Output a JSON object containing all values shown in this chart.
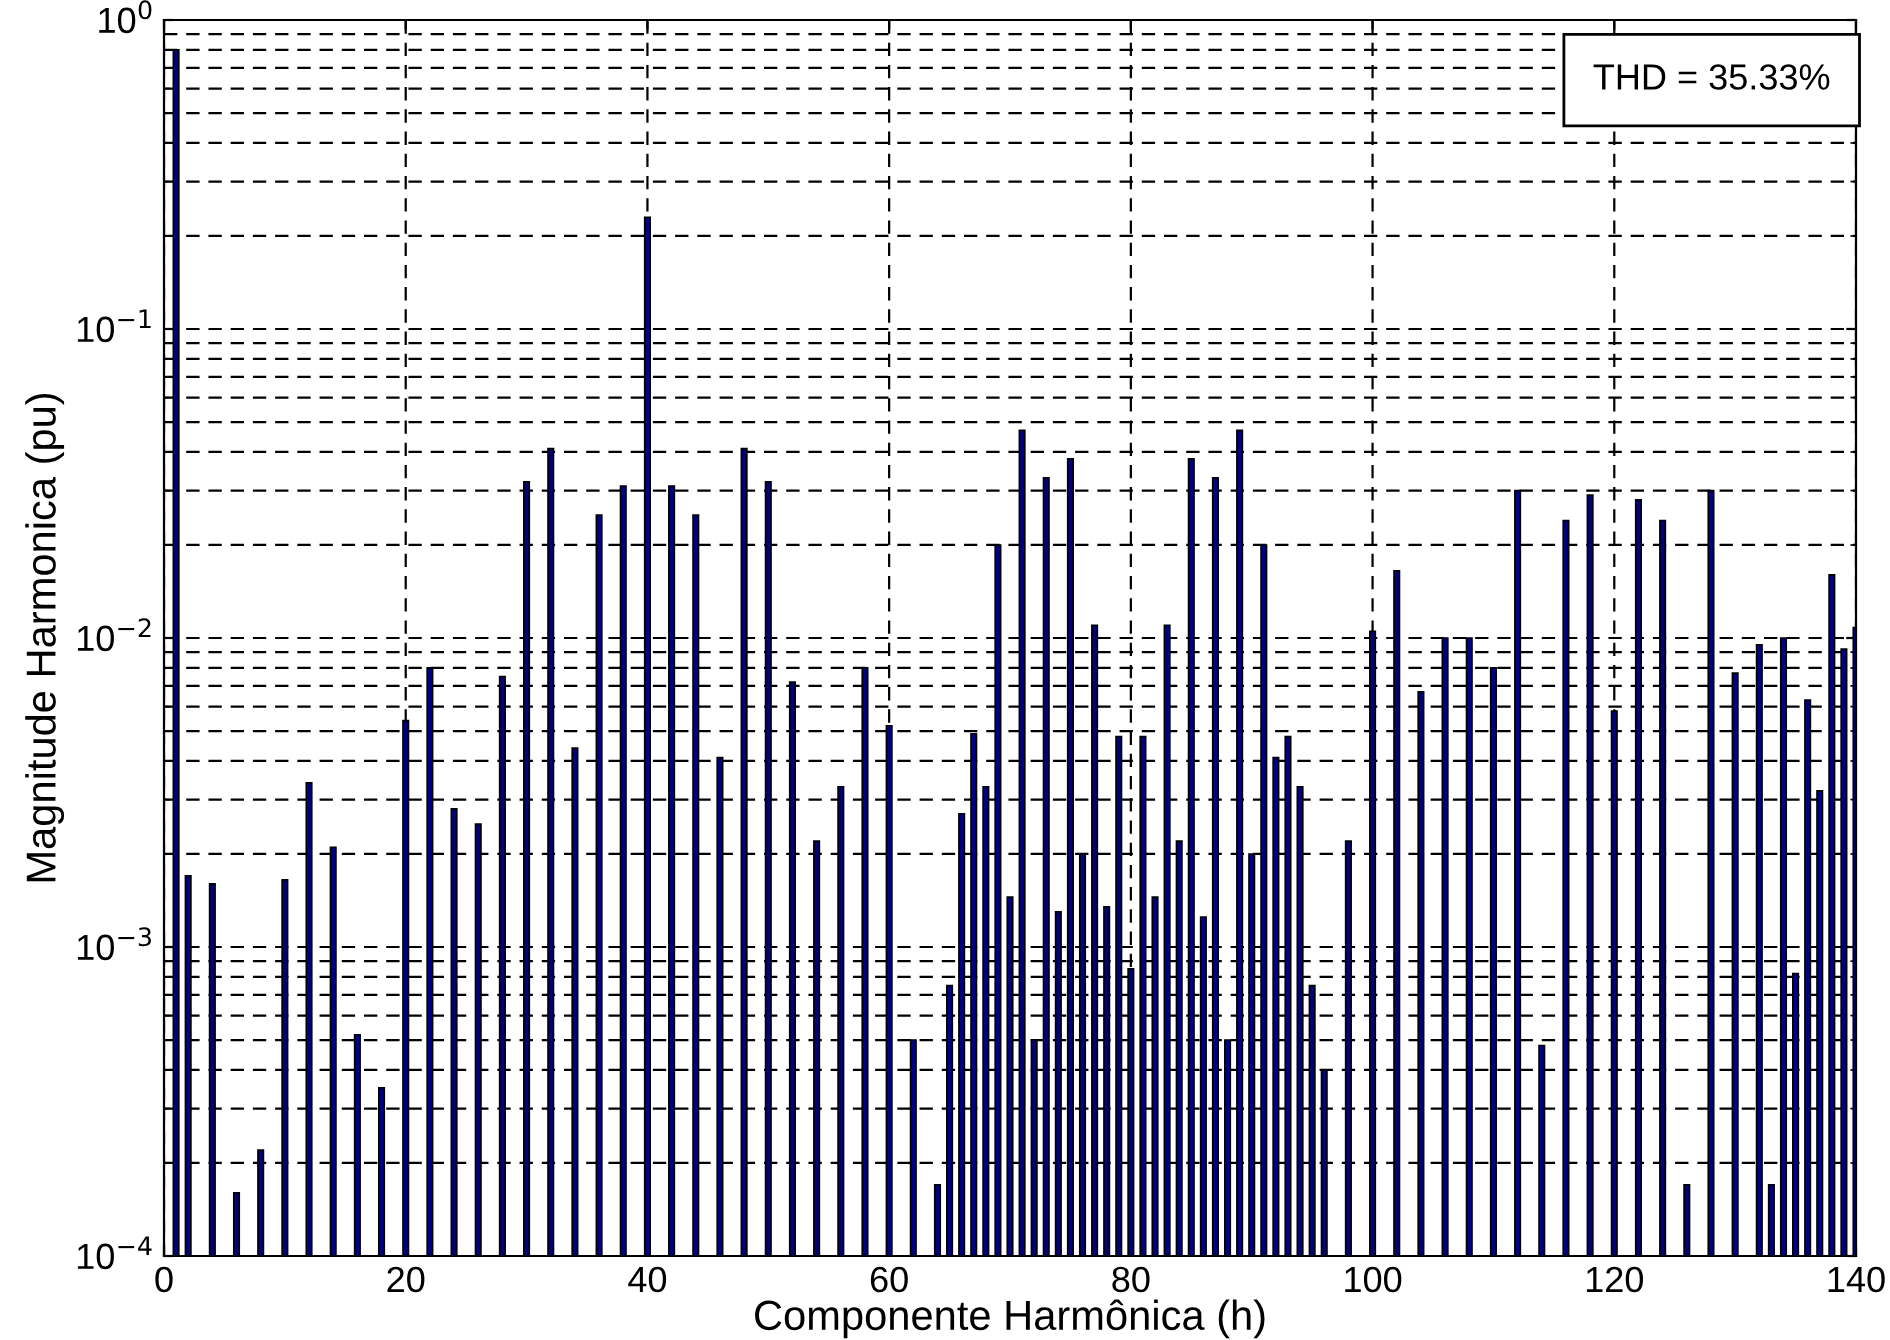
{
  "chart_data": {
    "type": "bar",
    "xlabel": "Componente Harmônica (h)",
    "ylabel": "Magnitude Harmonica (pu)",
    "annotations": [
      "THD = 35.33%"
    ],
    "x": [
      1,
      2,
      4,
      6,
      8,
      10,
      12,
      14,
      16,
      18,
      20,
      22,
      24,
      26,
      28,
      30,
      32,
      34,
      36,
      38,
      40,
      42,
      44,
      46,
      48,
      50,
      52,
      54,
      56,
      58,
      60,
      62,
      64,
      65,
      66,
      67,
      68,
      69,
      70,
      71,
      72,
      73,
      74,
      75,
      76,
      77,
      78,
      79,
      80,
      81,
      82,
      83,
      84,
      85,
      86,
      87,
      88,
      89,
      90,
      91,
      92,
      93,
      94,
      95,
      96,
      98,
      100,
      102,
      104,
      106,
      108,
      110,
      112,
      114,
      116,
      118,
      120,
      122,
      124,
      126,
      128,
      130,
      132,
      133,
      134,
      135,
      136,
      137,
      138,
      139,
      140
    ],
    "values": [
      0.8,
      0.0017,
      0.0016,
      0.00016,
      0.00022,
      0.00165,
      0.0034,
      0.0021,
      0.00052,
      0.00035,
      0.0054,
      0.008,
      0.0028,
      0.0025,
      0.0075,
      0.032,
      0.041,
      0.0044,
      0.025,
      0.031,
      0.23,
      0.031,
      0.025,
      0.0041,
      0.041,
      0.032,
      0.0072,
      0.0022,
      0.0033,
      0.008,
      0.0052,
      0.0005,
      0.00017,
      0.00075,
      0.0027,
      0.0049,
      0.0033,
      0.02,
      0.00145,
      0.047,
      0.0005,
      0.033,
      0.0013,
      0.038,
      0.002,
      0.011,
      0.00135,
      0.0048,
      0.00085,
      0.0048,
      0.00145,
      0.011,
      0.0022,
      0.038,
      0.00125,
      0.033,
      0.0005,
      0.047,
      0.002,
      0.02,
      0.0041,
      0.0048,
      0.0033,
      0.00075,
      0.0004,
      0.0022,
      0.0105,
      0.0165,
      0.0067,
      0.01,
      0.01,
      0.008,
      0.03,
      0.00048,
      0.024,
      0.029,
      0.0058,
      0.028,
      0.024,
      0.00017,
      0.03,
      0.0077,
      0.0095,
      0.00017,
      0.01,
      0.00082,
      0.0063,
      0.0032,
      0.016,
      0.0092,
      0.0108
    ],
    "color": "#000080",
    "log": "y",
    "grid": true,
    "xlim": [
      0,
      140
    ],
    "xticks": [
      0,
      20,
      40,
      60,
      80,
      100,
      120,
      140
    ],
    "ylim": [
      0.0001,
      1
    ],
    "yticks": [
      {
        "value": 0.0001,
        "label": "10$^{−4}$"
      },
      {
        "value": 0.001,
        "label": "10$^{−3}$"
      },
      {
        "value": 0.01,
        "label": "10$^{−2}$"
      },
      {
        "value": 0.1,
        "label": "10$^{−1}$"
      },
      {
        "value": 1,
        "label": "10$^{0}$"
      }
    ]
  }
}
